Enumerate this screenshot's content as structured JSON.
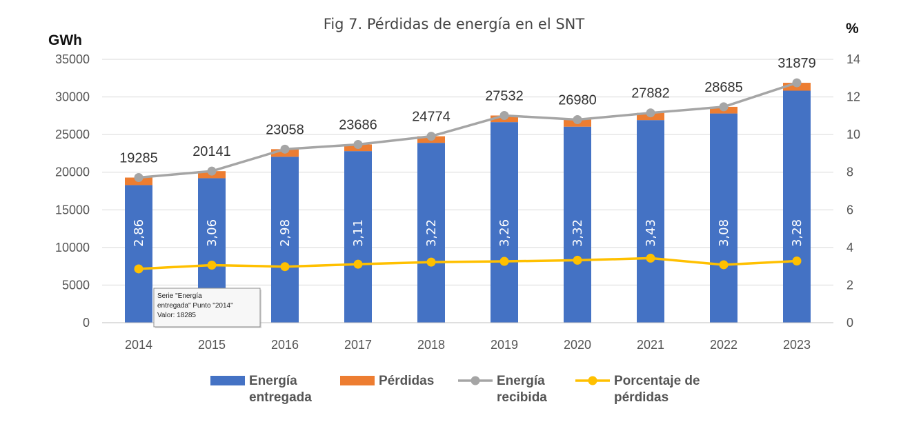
{
  "chart_data": {
    "type": "bar",
    "title": "Fig 7. Pérdidas de energía en el SNT",
    "ylabel": "GWh",
    "y2label": "%",
    "ylim": [
      0,
      35000
    ],
    "y2lim": [
      0,
      14
    ],
    "yticks": [
      "0",
      "5000",
      "10000",
      "15000",
      "20000",
      "25000",
      "30000",
      "35000"
    ],
    "y2ticks": [
      "0",
      "2",
      "4",
      "6",
      "8",
      "10",
      "12",
      "14"
    ],
    "grid": true,
    "categories": [
      "2014",
      "2015",
      "2016",
      "2017",
      "2018",
      "2019",
      "2020",
      "2021",
      "2022",
      "2023"
    ],
    "stacked": true,
    "series": [
      {
        "name": "Energía entregada",
        "type": "bar",
        "axis": "left",
        "color": "#4472C4",
        "values": [
          18285,
          19200,
          22050,
          22800,
          23900,
          26650,
          26050,
          26920,
          27800,
          30830
        ]
      },
      {
        "name": "Pérdidas",
        "type": "bar",
        "axis": "left",
        "color": "#ED7D31",
        "values": [
          1000,
          941,
          1008,
          886,
          874,
          882,
          930,
          962,
          885,
          1049
        ]
      },
      {
        "name": "Energía recibida",
        "type": "line",
        "axis": "left",
        "color": "#A5A5A5",
        "values": [
          19285,
          20141,
          23058,
          23686,
          24774,
          27532,
          26980,
          27882,
          28685,
          31879
        ],
        "labels": [
          "19285",
          "20141",
          "23058",
          "23686",
          "24774",
          "27532",
          "26980",
          "27882",
          "28685",
          "31879"
        ]
      },
      {
        "name": "Porcentaje de pérdidas",
        "type": "line",
        "axis": "right",
        "color": "#FFC000",
        "values": [
          2.86,
          3.06,
          2.98,
          3.11,
          3.22,
          3.26,
          3.32,
          3.43,
          3.08,
          3.28
        ],
        "labels": [
          "2,86",
          "3,06",
          "2,98",
          "3,11",
          "3,22",
          "3,26",
          "3,32",
          "3,43",
          "3,08",
          "3,28"
        ]
      }
    ],
    "legend": {
      "position": "bottom",
      "items": [
        {
          "lines": [
            "Energía",
            "entregada"
          ],
          "series": 0,
          "symbol": "bar"
        },
        {
          "lines": [
            "Pérdidas"
          ],
          "series": 1,
          "symbol": "bar"
        },
        {
          "lines": [
            "Energía",
            "recibida"
          ],
          "series": 2,
          "symbol": "line"
        },
        {
          "lines": [
            "Porcentaje de",
            "pérdidas"
          ],
          "series": 3,
          "symbol": "line"
        }
      ]
    },
    "tooltip": {
      "lines": [
        "Serie \"Energía",
        "entregada\" Punto \"2014\"",
        "Valor: 18285"
      ]
    }
  }
}
